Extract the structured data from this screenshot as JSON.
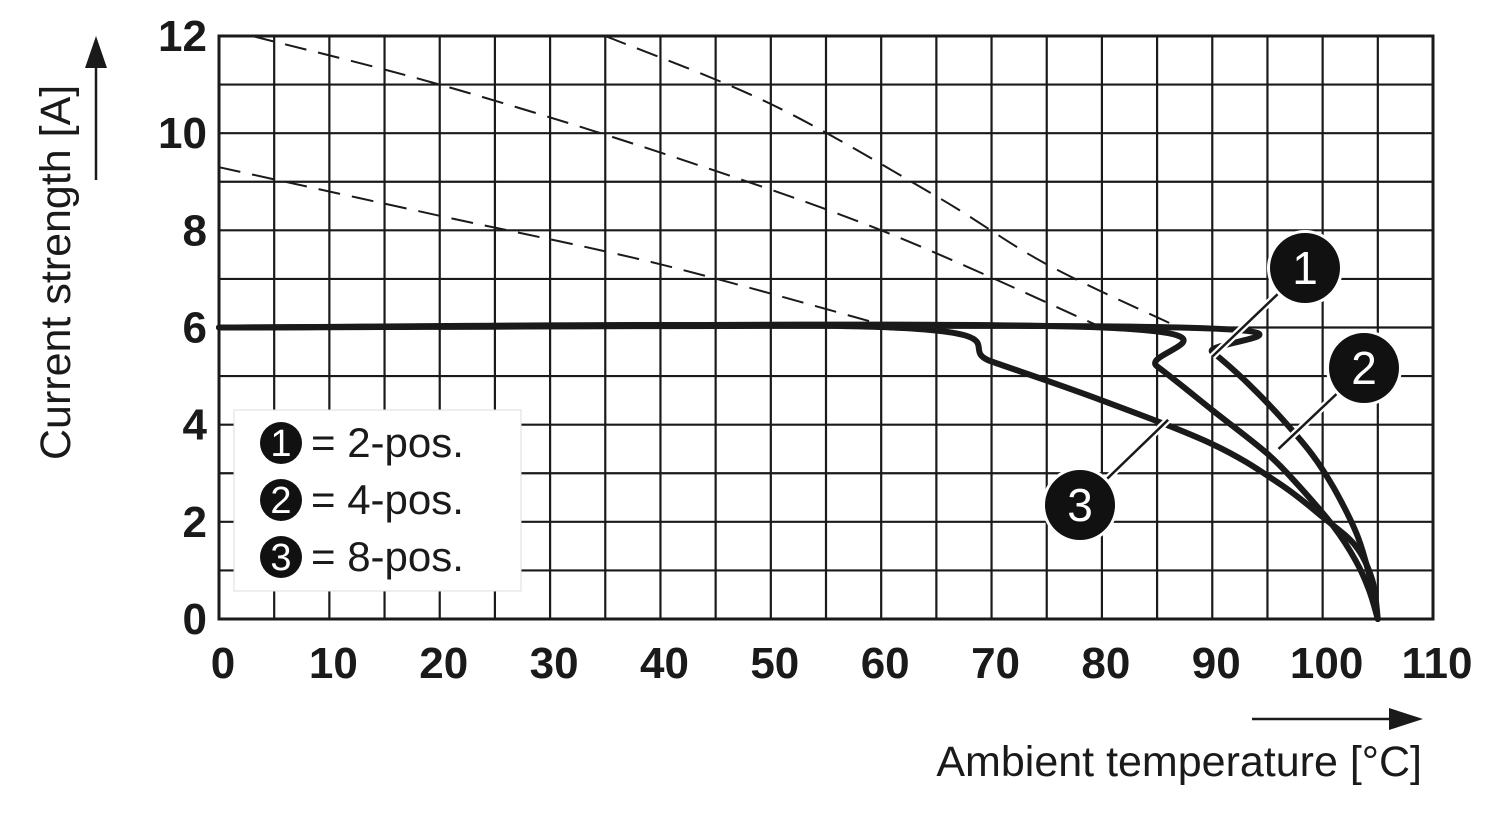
{
  "chart_data": {
    "type": "line",
    "xlabel": "Ambient temperature [°C]",
    "ylabel": "Current strength [A]",
    "xlim": [
      0,
      110
    ],
    "ylim": [
      0,
      12
    ],
    "x_ticks": [
      "0",
      "10",
      "20",
      "30",
      "40",
      "50",
      "60",
      "70",
      "80",
      "90",
      "100",
      "110"
    ],
    "y_ticks": [
      "0",
      "2",
      "4",
      "6",
      "8",
      "10",
      "12"
    ],
    "grid": true,
    "legend_position": "bottom-left",
    "legend": [
      {
        "marker": "1",
        "label": "= 2-pos."
      },
      {
        "marker": "2",
        "label": "= 4-pos."
      },
      {
        "marker": "3",
        "label": "= 8-pos."
      }
    ],
    "series": [
      {
        "marker": "1",
        "style": "solid",
        "x": [
          0,
          87,
          90,
          93,
          96,
          99,
          101,
          103,
          104,
          104.6,
          105
        ],
        "y": [
          6,
          6,
          5.5,
          4.9,
          4.2,
          3.4,
          2.7,
          1.8,
          1.1,
          0.5,
          0
        ]
      },
      {
        "marker": "2",
        "style": "solid",
        "x": [
          0,
          80,
          85,
          90,
          95,
          98,
          101,
          103,
          104.2,
          105
        ],
        "y": [
          6,
          6,
          5.2,
          4.3,
          3.4,
          2.7,
          1.9,
          1.2,
          0.6,
          0
        ]
      },
      {
        "marker": "3",
        "style": "solid",
        "x": [
          0,
          61,
          70,
          80,
          90,
          96,
          100,
          103,
          104.5,
          105
        ],
        "y": [
          6,
          6,
          5.3,
          4.5,
          3.6,
          2.8,
          2.1,
          1.5,
          0.8,
          0
        ]
      },
      {
        "marker": "1",
        "style": "dashed",
        "x": [
          35,
          50,
          65,
          75,
          87
        ],
        "y": [
          12,
          10.6,
          8.7,
          7.3,
          6
        ]
      },
      {
        "marker": "2",
        "style": "dashed",
        "x": [
          3,
          20,
          40,
          60,
          80
        ],
        "y": [
          12,
          11.0,
          9.6,
          8.0,
          6
        ]
      },
      {
        "marker": "3",
        "style": "dashed",
        "x": [
          0,
          20,
          40,
          61
        ],
        "y": [
          9.3,
          8.3,
          7.3,
          6
        ]
      }
    ],
    "callouts": [
      {
        "marker": "1",
        "point": [
          90,
          5.4
        ]
      },
      {
        "marker": "2",
        "point": [
          96,
          3.5
        ]
      },
      {
        "marker": "3",
        "point": [
          86,
          4.1
        ]
      }
    ],
    "colors": {
      "line": "#1a1a1a",
      "grid": "#1a1a1a",
      "marker_fill": "#111111",
      "marker_text": "#ffffff"
    }
  }
}
